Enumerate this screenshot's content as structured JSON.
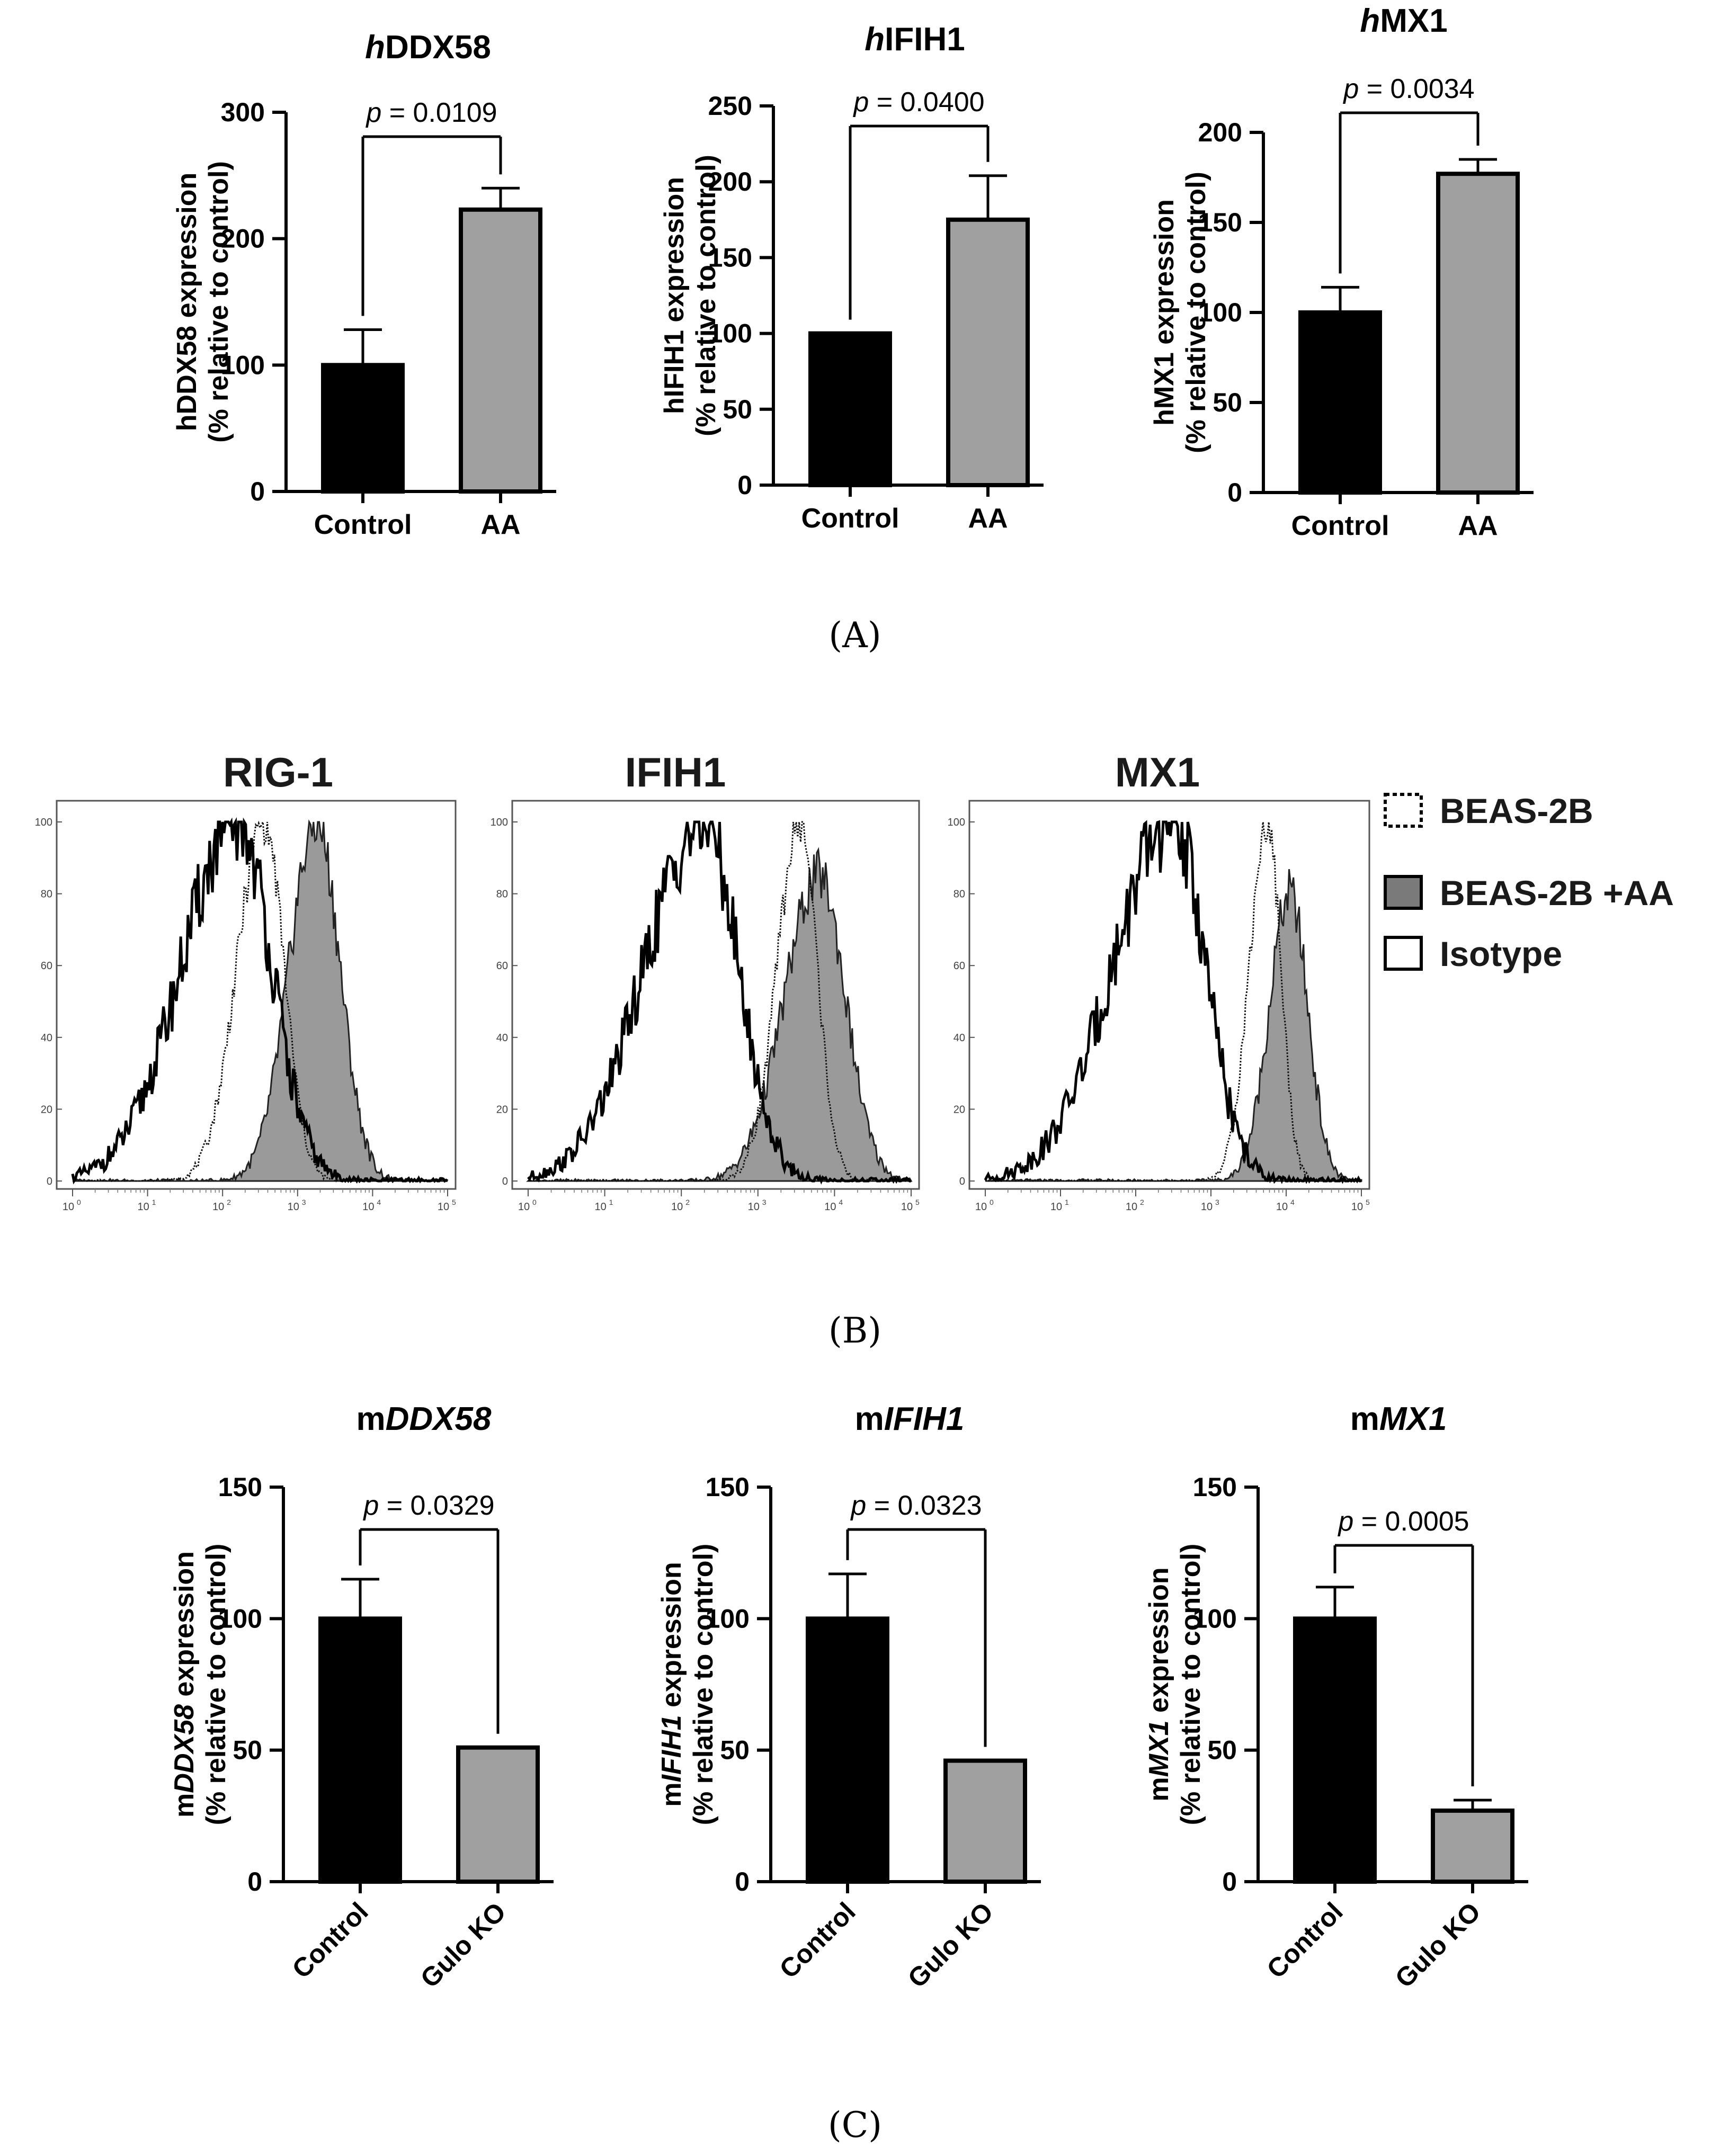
{
  "figure": {
    "panel_labels": [
      "(A)",
      "(B)",
      "(C)"
    ]
  },
  "colors": {
    "control": "#000000",
    "treated": "#a0a0a0",
    "shaded": "#9a9a9a",
    "axis": "#000000"
  },
  "chart_data": [
    {
      "id": "A1",
      "type": "bar",
      "panel": "A",
      "title_italic": "h",
      "title_rest": "DDX58",
      "ylabel_line1_pre": "hDDX58",
      "ylabel_line1_italic": "",
      "ylabel_line1_post": " expression",
      "ylabel_line2": "(% relative to control)",
      "categories": [
        "Control",
        "AA"
      ],
      "values": [
        100,
        223
      ],
      "errors": [
        28,
        17
      ],
      "ylim": [
        0,
        300
      ],
      "yticks": [
        0,
        100,
        200,
        300
      ],
      "significance": {
        "p_italic": "p",
        "p_text": " = 0.0109"
      },
      "xlabel_rotated": false
    },
    {
      "id": "A2",
      "type": "bar",
      "panel": "A",
      "title_italic": "h",
      "title_rest": "IFIH1",
      "ylabel_line1_pre": "hIFIH1",
      "ylabel_line1_italic": "",
      "ylabel_line1_post": " expression",
      "ylabel_line2": "(% relative to control)",
      "categories": [
        "Control",
        "AA"
      ],
      "values": [
        100,
        175
      ],
      "errors": [
        0,
        29
      ],
      "ylim": [
        0,
        250
      ],
      "yticks": [
        0,
        50,
        100,
        150,
        200,
        250
      ],
      "significance": {
        "p_italic": "p",
        "p_text": " = 0.0400"
      },
      "xlabel_rotated": false
    },
    {
      "id": "A3",
      "type": "bar",
      "panel": "A",
      "title_italic": "h",
      "title_rest": "MX1",
      "ylabel_line1_pre": "hMX1",
      "ylabel_line1_italic": "",
      "ylabel_line1_post": " expression",
      "ylabel_line2": "(% relative to control)",
      "categories": [
        "Control",
        "AA"
      ],
      "values": [
        100,
        177
      ],
      "errors": [
        14,
        8
      ],
      "ylim": [
        0,
        200
      ],
      "yticks": [
        0,
        50,
        100,
        150,
        200
      ],
      "significance": {
        "p_italic": "p",
        "p_text": " = 0.0034"
      },
      "xlabel_rotated": false
    },
    {
      "id": "C1",
      "type": "bar",
      "panel": "C",
      "title_pre": "m",
      "title_italic_part": "DDX58",
      "ylabel_line1_pre": "m",
      "ylabel_line1_italic": "DDX58",
      "ylabel_line1_post": " expression",
      "ylabel_line2": "(% relative to control)",
      "categories": [
        "Control",
        "Gulo KO"
      ],
      "values": [
        100,
        51
      ],
      "errors": [
        15,
        0
      ],
      "ylim": [
        0,
        150
      ],
      "yticks": [
        0,
        50,
        100,
        150
      ],
      "significance": {
        "p_italic": "p",
        "p_text": " = 0.0329"
      },
      "xlabel_rotated": true
    },
    {
      "id": "C2",
      "type": "bar",
      "panel": "C",
      "title_pre": "m",
      "title_italic_part": "IFIH1",
      "ylabel_line1_pre": "m",
      "ylabel_line1_italic": "IFIH1",
      "ylabel_line1_post": " expression",
      "ylabel_line2": "(% relative to control)",
      "categories": [
        "Control",
        "Gulo KO"
      ],
      "values": [
        100,
        46
      ],
      "errors": [
        17,
        0
      ],
      "ylim": [
        0,
        150
      ],
      "yticks": [
        0,
        50,
        100,
        150
      ],
      "significance": {
        "p_italic": "p",
        "p_text": " = 0.0323"
      },
      "xlabel_rotated": true
    },
    {
      "id": "C3",
      "type": "bar",
      "panel": "C",
      "title_pre": "m",
      "title_italic_part": "MX1",
      "ylabel_line1_pre": "m",
      "ylabel_line1_italic": "MX1",
      "ylabel_line1_post": " expression",
      "ylabel_line2": "(% relative to control)",
      "categories": [
        "Control",
        "Gulo KO"
      ],
      "values": [
        100,
        27
      ],
      "errors": [
        12,
        4
      ],
      "ylim": [
        0,
        150
      ],
      "yticks": [
        0,
        50,
        100,
        150
      ],
      "significance": {
        "p_italic": "p",
        "p_text": " = 0.0005"
      },
      "xlabel_rotated": true
    },
    {
      "id": "B",
      "type": "histogram",
      "panel": "B",
      "xscale": "log",
      "xlim": [
        1,
        100000
      ],
      "xtick_decades": [
        0,
        1,
        2,
        3,
        4,
        5
      ],
      "ylim": [
        0,
        100
      ],
      "yticks": [
        0,
        20,
        40,
        60,
        80,
        100
      ],
      "legend": [
        {
          "label": "BEAS-2B",
          "style": "dotted"
        },
        {
          "label": "BEAS-2B  +AA",
          "style": "filled"
        },
        {
          "label": "Isotype",
          "style": "solid"
        }
      ],
      "plots": [
        {
          "title": "RIG-1",
          "isotype_peak_log": 2.2,
          "isotype_sigma": 0.55,
          "isotype_skew": 0.35,
          "untreated_peak_log": 2.55,
          "untreated_sigma": 0.3,
          "untreated_skew": 0.2,
          "treated_peak_log": 3.25,
          "treated_sigma": 0.33,
          "treated_skew": 0.1,
          "treated_peak": 100
        },
        {
          "title": "IFIH1",
          "isotype_peak_log": 2.3,
          "isotype_sigma": 0.55,
          "isotype_skew": 0.4,
          "untreated_peak_log": 3.55,
          "untreated_sigma": 0.25,
          "untreated_skew": 0.2,
          "treated_peak_log": 3.8,
          "treated_sigma": 0.38,
          "treated_skew": 0.2,
          "treated_peak": 85
        },
        {
          "title": "MX1",
          "isotype_peak_log": 2.5,
          "isotype_sigma": 0.55,
          "isotype_skew": 0.45,
          "untreated_peak_log": 3.75,
          "untreated_sigma": 0.2,
          "untreated_skew": 0.2,
          "treated_peak_log": 4.05,
          "treated_sigma": 0.25,
          "treated_skew": 0.1,
          "treated_peak": 80
        }
      ]
    }
  ]
}
